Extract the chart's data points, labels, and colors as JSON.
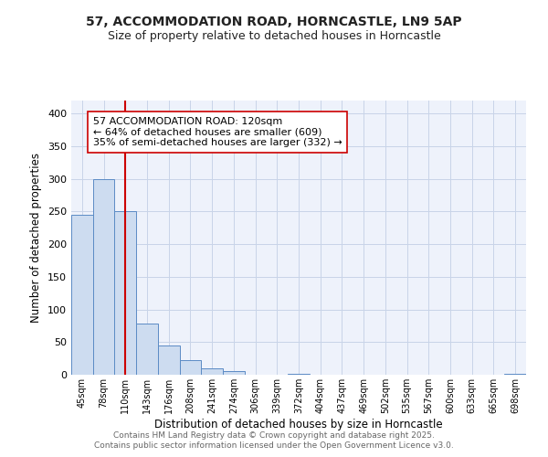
{
  "title": "57, ACCOMMODATION ROAD, HORNCASTLE, LN9 5AP",
  "subtitle": "Size of property relative to detached houses in Horncastle",
  "xlabel": "Distribution of detached houses by size in Horncastle",
  "ylabel": "Number of detached properties",
  "bar_labels": [
    "45sqm",
    "78sqm",
    "110sqm",
    "143sqm",
    "176sqm",
    "208sqm",
    "241sqm",
    "274sqm",
    "306sqm",
    "339sqm",
    "372sqm",
    "404sqm",
    "437sqm",
    "469sqm",
    "502sqm",
    "535sqm",
    "567sqm",
    "600sqm",
    "633sqm",
    "665sqm",
    "698sqm"
  ],
  "bar_values": [
    245,
    300,
    250,
    78,
    45,
    22,
    10,
    5,
    0,
    0,
    1,
    0,
    0,
    0,
    0,
    0,
    0,
    0,
    0,
    0,
    1
  ],
  "bar_color": "#cddcf0",
  "bar_edge_color": "#5b8bc5",
  "vline_x": 2,
  "vline_color": "#cc0000",
  "annotation_line1": "57 ACCOMMODATION ROAD: 120sqm",
  "annotation_line2": "← 64% of detached houses are smaller (609)",
  "annotation_line3": "35% of semi-detached houses are larger (332) →",
  "annotation_fontsize": 8,
  "ylim": [
    0,
    420
  ],
  "yticks": [
    0,
    50,
    100,
    150,
    200,
    250,
    300,
    350,
    400
  ],
  "grid_color": "#c8d4e8",
  "background_color": "#eef2fb",
  "footer_line1": "Contains HM Land Registry data © Crown copyright and database right 2025.",
  "footer_line2": "Contains public sector information licensed under the Open Government Licence v3.0.",
  "footer_fontsize": 6.5
}
